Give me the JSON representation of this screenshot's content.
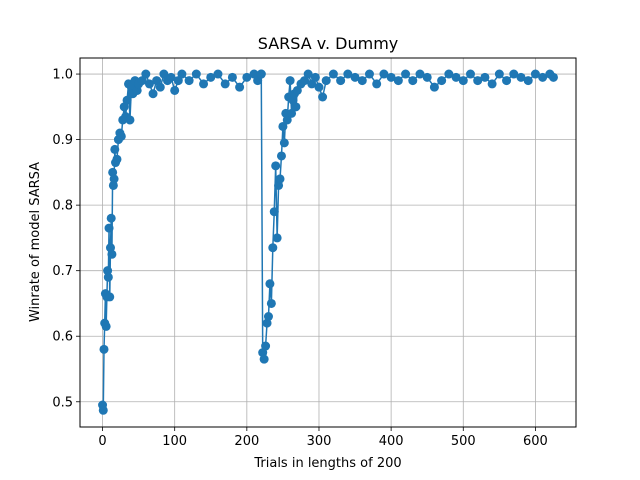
{
  "chart_data": {
    "type": "line",
    "title": "SARSA v. Dummy",
    "xlabel": "Trials in lengths of 200",
    "ylabel": "Winrate of model SARSA",
    "xlim": [
      -31.25,
      656.25
    ],
    "ylim": [
      0.4615,
      1.0245
    ],
    "xticks": [
      0,
      100,
      200,
      300,
      400,
      500,
      600
    ],
    "yticks": [
      0.5,
      0.6,
      0.7,
      0.8,
      0.9,
      1.0
    ],
    "xtick_labels": [
      "0",
      "100",
      "200",
      "300",
      "400",
      "500",
      "600"
    ],
    "ytick_labels": [
      "0.5",
      "0.6",
      "0.7",
      "0.8",
      "0.9",
      "1.0"
    ],
    "grid": true,
    "color": "#1f77b4",
    "markers": true,
    "series": [
      {
        "segments": [
          [
            [
              0,
              0.495
            ],
            [
              1,
              0.487
            ],
            [
              2,
              0.58
            ],
            [
              3,
              0.62
            ],
            [
              4,
              0.665
            ],
            [
              5,
              0.615
            ],
            [
              6,
              0.66
            ],
            [
              7,
              0.7
            ],
            [
              8,
              0.69
            ],
            [
              9,
              0.765
            ],
            [
              10,
              0.66
            ],
            [
              11,
              0.735
            ],
            [
              12,
              0.78
            ],
            [
              13,
              0.725
            ],
            [
              14,
              0.85
            ],
            [
              15,
              0.83
            ],
            [
              16,
              0.84
            ],
            [
              17,
              0.885
            ],
            [
              18,
              0.865
            ],
            [
              20,
              0.87
            ],
            [
              22,
              0.9
            ],
            [
              24,
              0.91
            ],
            [
              26,
              0.905
            ],
            [
              28,
              0.93
            ],
            [
              30,
              0.95
            ],
            [
              32,
              0.935
            ],
            [
              34,
              0.96
            ],
            [
              36,
              0.985
            ],
            [
              38,
              0.93
            ],
            [
              40,
              0.98
            ],
            [
              42,
              0.97
            ],
            [
              45,
              0.99
            ],
            [
              48,
              0.975
            ],
            [
              50,
              0.985
            ],
            [
              55,
              0.99
            ],
            [
              60,
              1.0
            ],
            [
              65,
              0.985
            ],
            [
              70,
              0.97
            ],
            [
              75,
              0.99
            ],
            [
              80,
              0.98
            ],
            [
              85,
              1.0
            ],
            [
              90,
              0.99
            ],
            [
              95,
              0.995
            ],
            [
              100,
              0.975
            ],
            [
              105,
              0.99
            ],
            [
              110,
              1.0
            ],
            [
              120,
              0.99
            ],
            [
              130,
              1.0
            ],
            [
              140,
              0.985
            ],
            [
              150,
              0.995
            ],
            [
              160,
              1.0
            ],
            [
              170,
              0.985
            ],
            [
              180,
              0.995
            ],
            [
              190,
              0.98
            ],
            [
              200,
              0.995
            ],
            [
              210,
              1.0
            ],
            [
              215,
              0.99
            ],
            [
              220,
              1.0
            ]
          ],
          [
            [
              220,
              1.0
            ],
            [
              222,
              0.575
            ],
            [
              224,
              0.565
            ],
            [
              226,
              0.585
            ],
            [
              228,
              0.62
            ],
            [
              230,
              0.63
            ],
            [
              232,
              0.68
            ],
            [
              234,
              0.65
            ],
            [
              236,
              0.735
            ],
            [
              238,
              0.79
            ],
            [
              240,
              0.86
            ],
            [
              242,
              0.75
            ],
            [
              244,
              0.83
            ],
            [
              246,
              0.84
            ],
            [
              248,
              0.875
            ],
            [
              250,
              0.92
            ],
            [
              252,
              0.895
            ],
            [
              254,
              0.94
            ],
            [
              256,
              0.93
            ],
            [
              258,
              0.965
            ],
            [
              260,
              0.99
            ],
            [
              262,
              0.94
            ],
            [
              264,
              0.96
            ],
            [
              266,
              0.97
            ],
            [
              268,
              0.95
            ],
            [
              270,
              0.975
            ],
            [
              275,
              0.985
            ],
            [
              280,
              0.99
            ],
            [
              285,
              1.0
            ],
            [
              290,
              0.985
            ],
            [
              295,
              0.995
            ],
            [
              300,
              0.98
            ],
            [
              305,
              0.965
            ],
            [
              310,
              0.99
            ],
            [
              320,
              1.0
            ],
            [
              330,
              0.99
            ],
            [
              340,
              1.0
            ],
            [
              350,
              0.995
            ],
            [
              360,
              0.99
            ],
            [
              370,
              1.0
            ],
            [
              380,
              0.985
            ],
            [
              390,
              1.0
            ],
            [
              400,
              0.995
            ],
            [
              410,
              0.99
            ],
            [
              420,
              1.0
            ],
            [
              430,
              0.99
            ],
            [
              440,
              1.0
            ],
            [
              450,
              0.995
            ],
            [
              460,
              0.98
            ],
            [
              470,
              0.99
            ],
            [
              480,
              1.0
            ],
            [
              490,
              0.995
            ],
            [
              500,
              0.99
            ],
            [
              510,
              1.0
            ],
            [
              520,
              0.99
            ],
            [
              530,
              0.995
            ],
            [
              540,
              0.985
            ],
            [
              550,
              1.0
            ],
            [
              560,
              0.99
            ],
            [
              570,
              1.0
            ],
            [
              580,
              0.995
            ],
            [
              590,
              0.99
            ],
            [
              600,
              1.0
            ],
            [
              610,
              0.995
            ],
            [
              620,
              1.0
            ],
            [
              625,
              0.995
            ]
          ]
        ]
      }
    ]
  }
}
